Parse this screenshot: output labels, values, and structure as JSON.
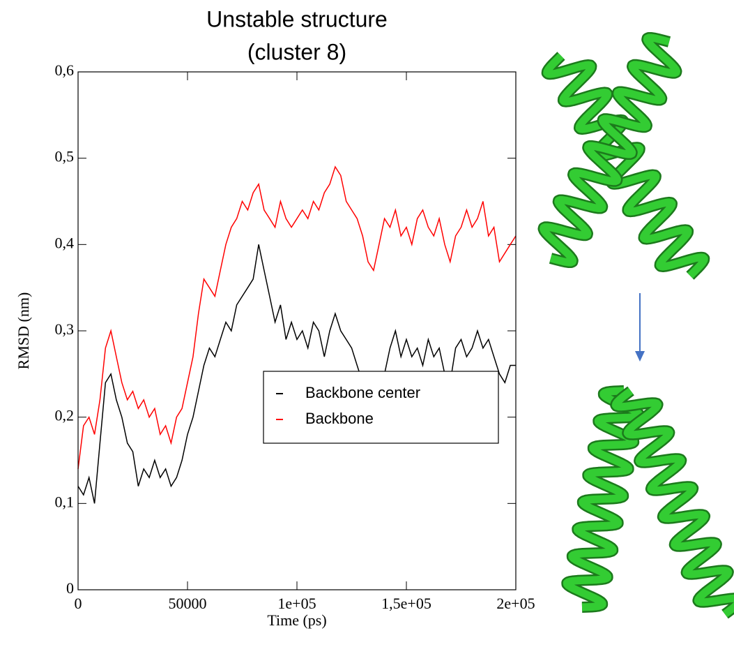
{
  "chart_data": {
    "type": "line",
    "title": "Unstable structure",
    "subtitle": "(cluster 8)",
    "x_label": "Time (ps)",
    "y_label": "RMSD (nm)",
    "x": [
      0,
      2500,
      5000,
      7500,
      10000,
      12500,
      15000,
      17500,
      20000,
      22500,
      25000,
      27500,
      30000,
      32500,
      35000,
      37500,
      40000,
      42500,
      45000,
      47500,
      50000,
      52500,
      55000,
      57500,
      60000,
      62500,
      65000,
      67500,
      70000,
      72500,
      75000,
      77500,
      80000,
      82500,
      85000,
      87500,
      90000,
      92500,
      95000,
      97500,
      100000,
      102500,
      105000,
      107500,
      110000,
      112500,
      115000,
      117500,
      120000,
      122500,
      125000,
      127500,
      130000,
      132500,
      135000,
      137500,
      140000,
      142500,
      145000,
      147500,
      150000,
      152500,
      155000,
      157500,
      160000,
      162500,
      165000,
      167500,
      170000,
      172500,
      175000,
      177500,
      180000,
      182500,
      185000,
      187500,
      190000,
      192500,
      195000,
      197500,
      200000
    ],
    "series": [
      {
        "name": "Backbone center",
        "color": "#000000",
        "values": [
          0.12,
          0.11,
          0.13,
          0.1,
          0.17,
          0.24,
          0.25,
          0.22,
          0.2,
          0.17,
          0.16,
          0.12,
          0.14,
          0.13,
          0.15,
          0.13,
          0.14,
          0.12,
          0.13,
          0.15,
          0.18,
          0.2,
          0.23,
          0.26,
          0.28,
          0.27,
          0.29,
          0.31,
          0.3,
          0.33,
          0.34,
          0.35,
          0.36,
          0.4,
          0.37,
          0.34,
          0.31,
          0.33,
          0.29,
          0.31,
          0.29,
          0.3,
          0.28,
          0.31,
          0.3,
          0.27,
          0.3,
          0.32,
          0.3,
          0.29,
          0.28,
          0.26,
          0.24,
          0.22,
          0.2,
          0.22,
          0.25,
          0.28,
          0.3,
          0.27,
          0.29,
          0.27,
          0.28,
          0.26,
          0.29,
          0.27,
          0.28,
          0.25,
          0.24,
          0.28,
          0.29,
          0.27,
          0.28,
          0.3,
          0.28,
          0.29,
          0.27,
          0.25,
          0.24,
          0.26,
          0.26
        ]
      },
      {
        "name": "Backbone",
        "color": "#ff0000",
        "values": [
          0.14,
          0.19,
          0.2,
          0.18,
          0.22,
          0.28,
          0.3,
          0.27,
          0.24,
          0.22,
          0.23,
          0.21,
          0.22,
          0.2,
          0.21,
          0.18,
          0.19,
          0.17,
          0.2,
          0.21,
          0.24,
          0.27,
          0.32,
          0.36,
          0.35,
          0.34,
          0.37,
          0.4,
          0.42,
          0.43,
          0.45,
          0.44,
          0.46,
          0.47,
          0.44,
          0.43,
          0.42,
          0.45,
          0.43,
          0.42,
          0.43,
          0.44,
          0.43,
          0.45,
          0.44,
          0.46,
          0.47,
          0.49,
          0.48,
          0.45,
          0.44,
          0.43,
          0.41,
          0.38,
          0.37,
          0.4,
          0.43,
          0.42,
          0.44,
          0.41,
          0.42,
          0.4,
          0.43,
          0.44,
          0.42,
          0.41,
          0.43,
          0.4,
          0.38,
          0.41,
          0.42,
          0.44,
          0.42,
          0.43,
          0.45,
          0.41,
          0.42,
          0.38,
          0.39,
          0.4,
          0.41
        ]
      }
    ],
    "xlim": [
      0,
      200000
    ],
    "xticks": [
      0,
      50000,
      {
        "value": 100000,
        "label": "1e+05"
      },
      {
        "value": 150000,
        "label": "1,5e+05"
      },
      {
        "value": 200000,
        "label": "2e+05"
      }
    ],
    "ylim": [
      0,
      0.6
    ],
    "yticks": [
      0,
      {
        "value": 0.1,
        "label": "0,1"
      },
      {
        "value": 0.2,
        "label": "0,2"
      },
      {
        "value": 0.3,
        "label": "0,3"
      },
      {
        "value": 0.4,
        "label": "0,4"
      },
      {
        "value": 0.5,
        "label": "0,5"
      },
      {
        "value": 0.6,
        "label": "0,6"
      }
    ],
    "grid": false,
    "legend": "lower right"
  }
}
